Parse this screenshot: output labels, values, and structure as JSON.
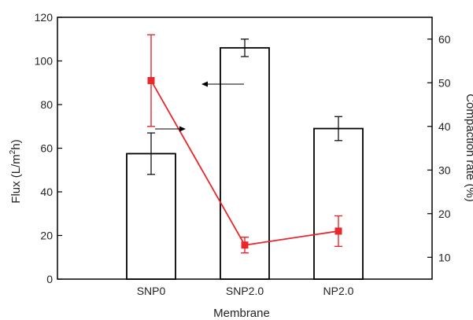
{
  "chart_data": {
    "type": "bar+line",
    "xlabel": "Membrane",
    "ylabel_left": "Flux (L/m",
    "ylabel_left_sup": "2",
    "ylabel_left_tail": "h)",
    "ylabel_right": "Compaction rate (%)",
    "categories": [
      "SNP0",
      "SNP2.0",
      "NP2.0"
    ],
    "ylim_left": [
      0,
      120
    ],
    "yticks_left": [
      "0",
      "20",
      "40",
      "60",
      "80",
      "100",
      "120"
    ],
    "ylim_right": [
      5,
      65
    ],
    "yticks_right": [
      "10",
      "20",
      "30",
      "40",
      "50",
      "60"
    ],
    "grid": false,
    "series": [
      {
        "kind": "bar",
        "axis": "left",
        "values": [
          57.5,
          106,
          69
        ],
        "errors": [
          9.5,
          4,
          5.5
        ],
        "color": "#000000"
      },
      {
        "kind": "line",
        "axis": "right",
        "values": [
          50.5,
          12.8,
          16
        ],
        "errors": [
          10.5,
          1.8,
          3.5
        ],
        "color": "#e8282b"
      }
    ],
    "annotations": [
      {
        "type": "arrow",
        "direction": "left",
        "points_to": "left-axis"
      },
      {
        "type": "arrow",
        "direction": "right",
        "points_to": "right-axis"
      }
    ]
  }
}
